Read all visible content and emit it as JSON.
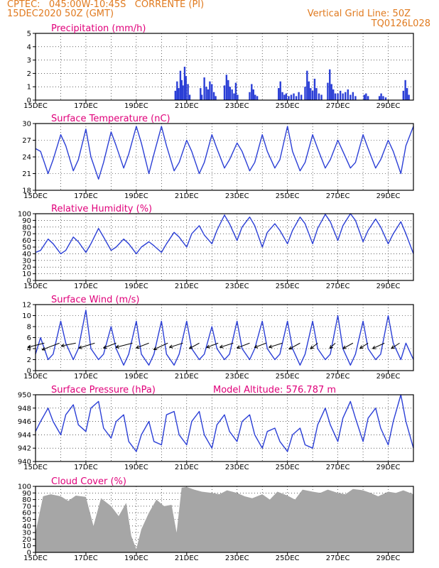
{
  "header": {
    "line1_left": "CPTEC:   045:00W-10:45S   CORRENTE (PI)",
    "line2_left": "15DEC2020 50Z (GMT)",
    "line1_right": "Vertical Grid Line: 50Z",
    "line2_right": "TQ0126L028"
  },
  "colors": {
    "series": "#2b3fd6",
    "title": "#e0007a",
    "header": "#e07a1f",
    "cloud": "#a6a6a6",
    "arrow": "#000000"
  },
  "chart_data": [
    {
      "type": "bar",
      "title": "Precipitation (mm/h)",
      "ylim": [
        0,
        5
      ],
      "yticks": [
        "0",
        "1",
        "2",
        "3",
        "4",
        "5"
      ],
      "x_tick_labels": [
        "15DEC",
        "17DEC",
        "19DEC",
        "21DEC",
        "23DEC",
        "25DEC",
        "27DEC",
        "29DEC"
      ],
      "x_start_day": 15,
      "x_end_day": 30,
      "bars": [
        [
          20.55,
          0.7
        ],
        [
          20.62,
          1.4
        ],
        [
          20.68,
          0.9
        ],
        [
          20.75,
          2.2
        ],
        [
          20.8,
          1.5
        ],
        [
          20.85,
          1.1
        ],
        [
          20.92,
          2.5
        ],
        [
          20.97,
          1.8
        ],
        [
          21.05,
          1.2
        ],
        [
          21.12,
          0.4
        ],
        [
          21.55,
          0.9
        ],
        [
          21.6,
          0.4
        ],
        [
          21.7,
          1.7
        ],
        [
          21.78,
          1.0
        ],
        [
          21.85,
          0.8
        ],
        [
          21.92,
          1.4
        ],
        [
          22.0,
          1.2
        ],
        [
          22.08,
          0.6
        ],
        [
          22.15,
          0.3
        ],
        [
          22.5,
          1.1
        ],
        [
          22.58,
          1.9
        ],
        [
          22.65,
          1.5
        ],
        [
          22.72,
          1.0
        ],
        [
          22.8,
          0.8
        ],
        [
          22.88,
          0.5
        ],
        [
          22.95,
          1.3
        ],
        [
          23.02,
          0.4
        ],
        [
          23.5,
          0.6
        ],
        [
          23.58,
          1.2
        ],
        [
          23.65,
          0.8
        ],
        [
          23.72,
          0.4
        ],
        [
          23.8,
          0.3
        ],
        [
          24.65,
          0.9
        ],
        [
          24.72,
          1.4
        ],
        [
          24.8,
          0.6
        ],
        [
          24.88,
          0.4
        ],
        [
          24.95,
          0.5
        ],
        [
          25.05,
          0.3
        ],
        [
          25.15,
          0.4
        ],
        [
          25.25,
          0.5
        ],
        [
          25.35,
          0.3
        ],
        [
          25.45,
          0.6
        ],
        [
          25.55,
          0.4
        ],
        [
          25.7,
          1.0
        ],
        [
          25.78,
          2.2
        ],
        [
          25.85,
          1.4
        ],
        [
          25.92,
          0.9
        ],
        [
          26.0,
          0.7
        ],
        [
          26.08,
          1.6
        ],
        [
          26.15,
          0.9
        ],
        [
          26.25,
          0.5
        ],
        [
          26.35,
          0.4
        ],
        [
          26.6,
          1.3
        ],
        [
          26.68,
          2.3
        ],
        [
          26.75,
          1.2
        ],
        [
          26.82,
          0.8
        ],
        [
          26.9,
          0.5
        ],
        [
          27.0,
          0.5
        ],
        [
          27.1,
          0.7
        ],
        [
          27.2,
          0.5
        ],
        [
          27.3,
          0.6
        ],
        [
          27.4,
          0.8
        ],
        [
          27.5,
          0.4
        ],
        [
          27.6,
          0.6
        ],
        [
          27.7,
          0.3
        ],
        [
          28.05,
          0.4
        ],
        [
          28.12,
          0.5
        ],
        [
          28.2,
          0.3
        ],
        [
          28.65,
          0.3
        ],
        [
          28.72,
          0.5
        ],
        [
          28.8,
          0.3
        ],
        [
          28.9,
          0.2
        ],
        [
          29.6,
          0.7
        ],
        [
          29.68,
          1.5
        ],
        [
          29.75,
          0.9
        ],
        [
          29.82,
          0.4
        ]
      ]
    },
    {
      "type": "line",
      "title": "Surface Temperature (nC)",
      "ylim": [
        18,
        30
      ],
      "yticks": [
        "18",
        "21",
        "24",
        "27",
        "30"
      ],
      "x_tick_labels": [
        "15DEC",
        "17DEC",
        "19DEC",
        "21DEC",
        "23DEC",
        "25DEC",
        "27DEC",
        "29DEC"
      ],
      "x": [
        15.0,
        15.2,
        15.5,
        15.7,
        16.0,
        16.2,
        16.5,
        16.7,
        17.0,
        17.2,
        17.5,
        17.7,
        18.0,
        18.2,
        18.5,
        18.7,
        19.0,
        19.2,
        19.5,
        19.7,
        20.0,
        20.2,
        20.5,
        20.7,
        21.0,
        21.2,
        21.5,
        21.7,
        22.0,
        22.2,
        22.5,
        22.7,
        23.0,
        23.2,
        23.5,
        23.7,
        24.0,
        24.2,
        24.5,
        24.7,
        25.0,
        25.2,
        25.5,
        25.7,
        26.0,
        26.2,
        26.5,
        26.7,
        27.0,
        27.2,
        27.5,
        27.7,
        28.0,
        28.2,
        28.5,
        28.7,
        29.0,
        29.2,
        29.5,
        29.7,
        30.0
      ],
      "y": [
        25.5,
        25.0,
        21.0,
        23.5,
        28.0,
        26.0,
        21.5,
        23.5,
        29.0,
        24.0,
        20.0,
        23.0,
        28.5,
        26.0,
        22.0,
        24.5,
        29.5,
        26.5,
        21.0,
        24.5,
        29.5,
        26.0,
        21.5,
        23.0,
        27.0,
        25.0,
        21.0,
        23.0,
        28.0,
        25.5,
        22.0,
        23.5,
        26.5,
        25.0,
        21.5,
        23.0,
        28.0,
        25.0,
        22.0,
        23.5,
        29.5,
        25.0,
        21.5,
        23.0,
        28.0,
        25.5,
        22.0,
        23.5,
        27.0,
        25.0,
        22.0,
        23.0,
        28.0,
        25.5,
        22.0,
        23.5,
        27.0,
        25.0,
        21.0,
        26.0,
        29.5
      ]
    },
    {
      "type": "line",
      "title": "Relative Humidity (%)",
      "ylim": [
        0,
        100
      ],
      "yticks": [
        "0",
        "10",
        "20",
        "30",
        "40",
        "50",
        "60",
        "70",
        "80",
        "90",
        "100"
      ],
      "x_tick_labels": [
        "15DEC",
        "17DEC",
        "19DEC",
        "21DEC",
        "23DEC",
        "25DEC",
        "27DEC",
        "29DEC"
      ],
      "x": [
        15.0,
        15.2,
        15.5,
        15.7,
        16.0,
        16.2,
        16.5,
        16.7,
        17.0,
        17.2,
        17.5,
        17.7,
        18.0,
        18.2,
        18.5,
        18.7,
        19.0,
        19.2,
        19.5,
        19.7,
        20.0,
        20.2,
        20.5,
        20.7,
        21.0,
        21.2,
        21.5,
        21.7,
        22.0,
        22.2,
        22.5,
        22.7,
        23.0,
        23.2,
        23.5,
        23.7,
        24.0,
        24.2,
        24.5,
        24.7,
        25.0,
        25.2,
        25.5,
        25.7,
        26.0,
        26.2,
        26.5,
        26.7,
        27.0,
        27.2,
        27.5,
        27.7,
        28.0,
        28.2,
        28.5,
        28.7,
        29.0,
        29.2,
        29.5,
        29.7,
        30.0
      ],
      "y": [
        42,
        45,
        62,
        55,
        40,
        45,
        65,
        58,
        42,
        55,
        78,
        65,
        45,
        50,
        62,
        55,
        40,
        50,
        58,
        52,
        42,
        55,
        72,
        65,
        50,
        70,
        82,
        68,
        55,
        75,
        98,
        85,
        60,
        80,
        95,
        82,
        50,
        72,
        85,
        75,
        55,
        75,
        95,
        85,
        55,
        78,
        99,
        88,
        60,
        82,
        100,
        90,
        58,
        75,
        92,
        80,
        55,
        70,
        88,
        70,
        40
      ]
    },
    {
      "type": "line",
      "title": "Surface Wind (m/s)",
      "ylim": [
        0,
        12
      ],
      "yticks": [
        "0",
        "2",
        "4",
        "6",
        "8",
        "10",
        "12"
      ],
      "x_tick_labels": [
        "15DEC",
        "17DEC",
        "19DEC",
        "21DEC",
        "23DEC",
        "25DEC",
        "27DEC",
        "29DEC"
      ],
      "x": [
        15.0,
        15.2,
        15.5,
        15.7,
        16.0,
        16.2,
        16.5,
        16.7,
        17.0,
        17.2,
        17.5,
        17.7,
        18.0,
        18.2,
        18.5,
        18.7,
        19.0,
        19.2,
        19.5,
        19.7,
        20.0,
        20.2,
        20.5,
        20.7,
        21.0,
        21.2,
        21.5,
        21.7,
        22.0,
        22.2,
        22.5,
        22.7,
        23.0,
        23.2,
        23.5,
        23.7,
        24.0,
        24.2,
        24.5,
        24.7,
        25.0,
        25.2,
        25.5,
        25.7,
        26.0,
        26.2,
        26.5,
        26.7,
        27.0,
        27.2,
        27.5,
        27.7,
        28.0,
        28.2,
        28.5,
        28.7,
        29.0,
        29.2,
        29.5,
        29.7,
        30.0
      ],
      "y": [
        3,
        6,
        2,
        3,
        9,
        5,
        2,
        4,
        11,
        4,
        2,
        3,
        8,
        4,
        1,
        3,
        9,
        3,
        1,
        3,
        9,
        3,
        1,
        3,
        9,
        4,
        2,
        3,
        8,
        4,
        2,
        3,
        9,
        4,
        2,
        4,
        9,
        4,
        2,
        3,
        9,
        4,
        1,
        3,
        9,
        4,
        2,
        3,
        10,
        4,
        1,
        3,
        9,
        4,
        2,
        3,
        10,
        5,
        2,
        5,
        2
      ],
      "arrows": [
        {
          "day": 15.35,
          "angle": 205,
          "len": 26
        },
        {
          "day": 15.95,
          "angle": 215,
          "len": 30
        },
        {
          "day": 16.6,
          "angle": 200,
          "len": 22
        },
        {
          "day": 17.35,
          "angle": 210,
          "len": 26
        },
        {
          "day": 18.2,
          "angle": 215,
          "len": 22
        },
        {
          "day": 18.85,
          "angle": 205,
          "len": 26
        },
        {
          "day": 19.5,
          "angle": 215,
          "len": 22
        },
        {
          "day": 20.25,
          "angle": 220,
          "len": 26
        },
        {
          "day": 20.85,
          "angle": 210,
          "len": 22
        },
        {
          "day": 21.5,
          "angle": 225,
          "len": 20
        },
        {
          "day": 22.25,
          "angle": 215,
          "len": 20
        },
        {
          "day": 22.85,
          "angle": 210,
          "len": 22
        },
        {
          "day": 23.5,
          "angle": 215,
          "len": 22
        },
        {
          "day": 24.15,
          "angle": 215,
          "len": 20
        },
        {
          "day": 24.8,
          "angle": 210,
          "len": 22
        },
        {
          "day": 25.5,
          "angle": 225,
          "len": 22
        },
        {
          "day": 26.2,
          "angle": 235,
          "len": 18
        },
        {
          "day": 26.9,
          "angle": 240,
          "len": 16
        },
        {
          "day": 27.6,
          "angle": 225,
          "len": 20
        },
        {
          "day": 28.2,
          "angle": 230,
          "len": 18
        },
        {
          "day": 28.85,
          "angle": 220,
          "len": 22
        },
        {
          "day": 29.45,
          "angle": 230,
          "len": 18
        }
      ]
    },
    {
      "type": "line",
      "title": "Surface Pressure (hPa)",
      "subtitle": "Model Altitude: 576.787 m",
      "ylim": [
        940,
        950
      ],
      "yticks": [
        "940",
        "942",
        "944",
        "946",
        "948",
        "950"
      ],
      "x_tick_labels": [
        "15DEC",
        "17DEC",
        "19DEC",
        "21DEC",
        "23DEC",
        "25DEC",
        "27DEC",
        "29DEC"
      ],
      "x": [
        15.0,
        15.2,
        15.5,
        15.7,
        16.0,
        16.2,
        16.5,
        16.7,
        17.0,
        17.2,
        17.5,
        17.7,
        18.0,
        18.2,
        18.5,
        18.7,
        19.0,
        19.2,
        19.5,
        19.7,
        20.0,
        20.2,
        20.5,
        20.7,
        21.0,
        21.2,
        21.5,
        21.7,
        22.0,
        22.2,
        22.5,
        22.7,
        23.0,
        23.2,
        23.5,
        23.7,
        24.0,
        24.2,
        24.5,
        24.7,
        25.0,
        25.2,
        25.5,
        25.7,
        26.0,
        26.2,
        26.5,
        26.7,
        27.0,
        27.2,
        27.5,
        27.7,
        28.0,
        28.2,
        28.5,
        28.7,
        29.0,
        29.2,
        29.5,
        29.7,
        30.0
      ],
      "y": [
        944.5,
        946,
        948,
        946,
        944,
        947,
        948.5,
        945.5,
        944.5,
        948,
        949,
        945,
        943.5,
        946,
        947,
        943,
        941.5,
        944,
        946,
        943,
        942.5,
        947,
        947.5,
        944,
        942.5,
        946,
        947.5,
        944,
        942,
        945.5,
        947,
        944.5,
        943,
        946,
        947,
        944,
        942,
        944.5,
        945,
        943,
        941.5,
        944,
        945,
        942.5,
        942,
        945.5,
        948,
        945.5,
        943,
        946.5,
        949,
        946.5,
        943,
        946.5,
        948,
        945,
        942.5,
        946,
        950,
        946,
        942
      ]
    },
    {
      "type": "area",
      "title": "Cloud Cover (%)",
      "ylim": [
        0,
        100
      ],
      "yticks": [
        "0",
        "10",
        "20",
        "30",
        "40",
        "50",
        "60",
        "70",
        "80",
        "90",
        "100"
      ],
      "x_tick_labels": [
        "15DEC",
        "17DEC",
        "19DEC",
        "21DEC",
        "23DEC",
        "25DEC",
        "27DEC",
        "29DEC"
      ],
      "x": [
        15.0,
        15.3,
        15.6,
        16.0,
        16.3,
        16.6,
        17.0,
        17.3,
        17.6,
        18.0,
        18.3,
        18.6,
        18.8,
        19.0,
        19.2,
        19.5,
        19.8,
        20.1,
        20.4,
        20.6,
        20.8,
        21.0,
        21.3,
        21.6,
        22.0,
        22.3,
        22.6,
        23.0,
        23.3,
        23.6,
        24.0,
        24.3,
        24.6,
        25.0,
        25.3,
        25.6,
        26.0,
        26.3,
        26.6,
        27.0,
        27.3,
        27.6,
        28.0,
        28.3,
        28.6,
        29.0,
        29.3,
        29.6,
        30.0
      ],
      "y": [
        30,
        85,
        88,
        85,
        78,
        86,
        84,
        40,
        82,
        70,
        55,
        75,
        25,
        5,
        35,
        60,
        80,
        70,
        72,
        30,
        98,
        99,
        95,
        92,
        90,
        88,
        94,
        90,
        85,
        82,
        88,
        80,
        92,
        86,
        80,
        95,
        92,
        90,
        95,
        90,
        88,
        96,
        94,
        90,
        85,
        92,
        90,
        94,
        88
      ]
    }
  ]
}
